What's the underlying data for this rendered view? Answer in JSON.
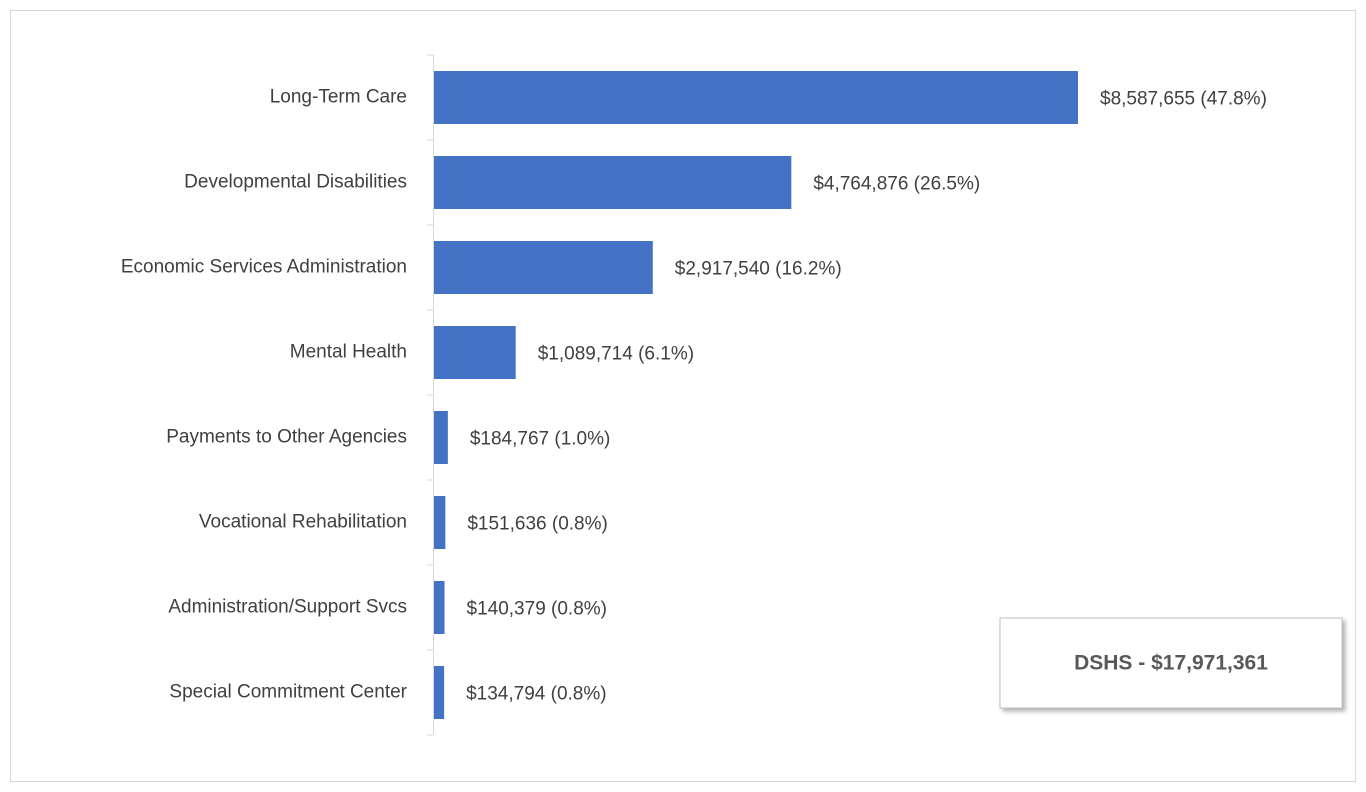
{
  "chart_data": {
    "type": "bar",
    "orientation": "horizontal",
    "categories": [
      "Long-Term Care",
      "Developmental Disabilities",
      "Economic Services Administration",
      "Mental Health",
      "Payments to Other Agencies",
      "Vocational Rehabilitation",
      "Administration/Support Svcs",
      "Special Commitment Center"
    ],
    "values": [
      8587655,
      4764876,
      2917540,
      1089714,
      184767,
      151636,
      140379,
      134794
    ],
    "value_labels": [
      "$8,587,655 (47.8%)",
      "$4,764,876 (26.5%)",
      "$2,917,540 (16.2%)",
      "$1,089,714 (6.1%)",
      "$184,767 (1.0%)",
      "$151,636 (0.8%)",
      "$140,379 (0.8%)",
      "$134,794 (0.8%)"
    ],
    "color": "#4472c4",
    "annotation": "DSHS - $17,971,361"
  }
}
